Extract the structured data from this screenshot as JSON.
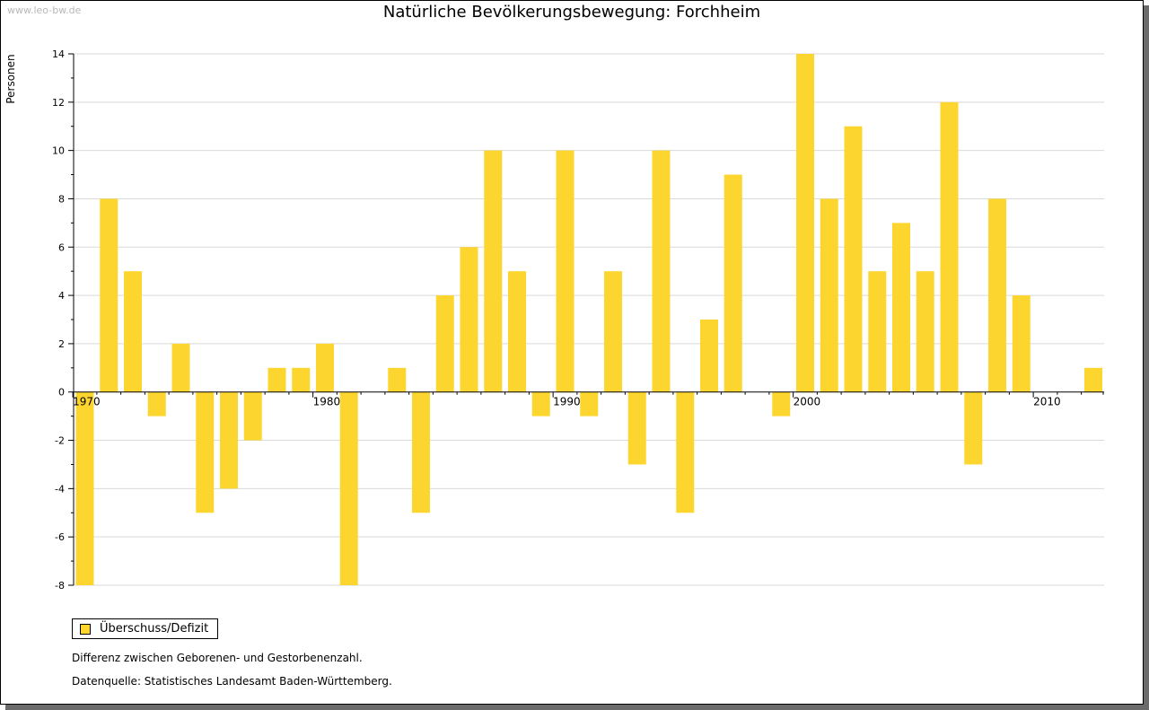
{
  "watermark": "www.leo-bw.de",
  "chart_data": {
    "type": "bar",
    "title": "Natürliche Bevölkerungsbewegung: Forchheim",
    "xlabel": "",
    "ylabel": "Personen",
    "ylim": [
      -8,
      14
    ],
    "yticks": [
      -8,
      -6,
      -4,
      -2,
      0,
      2,
      4,
      6,
      8,
      10,
      12,
      14
    ],
    "xticks": [
      1970,
      1980,
      1990,
      2000,
      2010
    ],
    "grid": true,
    "legend_position": "bottom-left",
    "color": "#fdd52f",
    "categories": [
      1970,
      1971,
      1972,
      1973,
      1974,
      1975,
      1976,
      1977,
      1978,
      1979,
      1980,
      1981,
      1982,
      1983,
      1984,
      1985,
      1986,
      1987,
      1988,
      1989,
      1990,
      1991,
      1992,
      1993,
      1994,
      1995,
      1996,
      1997,
      1998,
      1999,
      2000,
      2001,
      2002,
      2003,
      2004,
      2005,
      2006,
      2007,
      2008,
      2009,
      2010,
      2011,
      2012
    ],
    "series": [
      {
        "name": "Überschuss/Defizit",
        "values": [
          -8,
          8,
          5,
          -1,
          2,
          -5,
          -4,
          -2,
          1,
          1,
          2,
          -8,
          0,
          1,
          -5,
          4,
          6,
          10,
          5,
          -1,
          10,
          -1,
          5,
          -3,
          10,
          -5,
          3,
          9,
          0,
          -1,
          14,
          8,
          11,
          5,
          7,
          5,
          12,
          -3,
          8,
          4,
          0,
          0,
          1
        ]
      }
    ]
  },
  "notes": {
    "line1": "Differenz zwischen Geborenen- und Gestorbenenzahl.",
    "line2": "Datenquelle: Statistisches Landesamt Baden-Württemberg."
  }
}
